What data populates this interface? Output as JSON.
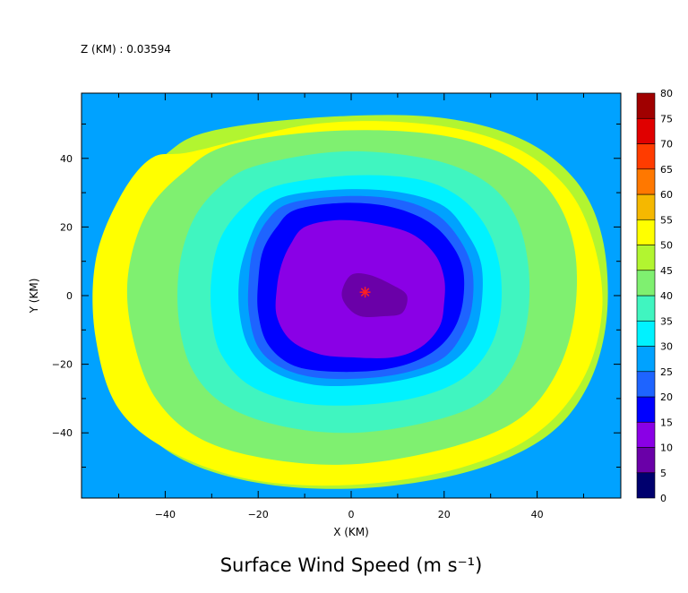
{
  "chart_data": {
    "type": "heatmap",
    "annotation": "Z (KM) : 0.03594",
    "title": "Surface Wind Speed (m s⁻¹)",
    "xlabel": "X (KM)",
    "ylabel": "Y (KM)",
    "xlim": [
      -58,
      58
    ],
    "ylim": [
      -59,
      59
    ],
    "x_ticks": [
      -40,
      -20,
      0,
      20,
      40
    ],
    "y_ticks": [
      -40,
      -20,
      0,
      20,
      40
    ],
    "colorbar": {
      "levels": [
        0,
        5,
        10,
        15,
        20,
        25,
        30,
        35,
        40,
        45,
        50,
        55,
        60,
        65,
        70,
        75,
        80
      ],
      "colors": [
        "#00006e",
        "#6a00a8",
        "#8a00e6",
        "#0000ff",
        "#1e64ff",
        "#00a2ff",
        "#00f2ff",
        "#40f5c0",
        "#7ff070",
        "#b2f530",
        "#ffff00",
        "#f5b800",
        "#ff7800",
        "#ff3c00",
        "#e00000",
        "#a00000"
      ]
    },
    "storm_center": {
      "x": 3,
      "y": 1,
      "marker": "red-asterisk"
    },
    "contours": [
      {
        "level": 5,
        "points": [
          [
            0,
            6
          ],
          [
            4,
            6
          ],
          [
            9,
            3
          ],
          [
            12,
            0
          ],
          [
            11,
            -5
          ],
          [
            7,
            -6
          ],
          [
            2,
            -6
          ],
          [
            -1,
            -3
          ],
          [
            -2,
            1
          ]
        ]
      },
      {
        "level": 10,
        "points": [
          [
            -10,
            20
          ],
          [
            -3,
            22
          ],
          [
            5,
            21
          ],
          [
            13,
            18
          ],
          [
            18,
            12
          ],
          [
            20,
            5
          ],
          [
            20,
            -2
          ],
          [
            19,
            -9
          ],
          [
            15,
            -15
          ],
          [
            9,
            -18
          ],
          [
            0,
            -18
          ],
          [
            -7,
            -17
          ],
          [
            -13,
            -13
          ],
          [
            -16,
            -6
          ],
          [
            -16,
            2
          ],
          [
            -15,
            9
          ],
          [
            -13,
            15
          ]
        ]
      },
      {
        "level": 15,
        "points": [
          [
            -12,
            25
          ],
          [
            -2,
            27
          ],
          [
            8,
            26
          ],
          [
            16,
            22
          ],
          [
            21,
            16
          ],
          [
            24,
            8
          ],
          [
            24,
            -2
          ],
          [
            22,
            -10
          ],
          [
            18,
            -16
          ],
          [
            12,
            -20
          ],
          [
            4,
            -22
          ],
          [
            -6,
            -22
          ],
          [
            -13,
            -20
          ],
          [
            -18,
            -14
          ],
          [
            -20,
            -5
          ],
          [
            -20,
            4
          ],
          [
            -19,
            13
          ],
          [
            -16,
            20
          ]
        ]
      },
      {
        "level": 20,
        "points": [
          [
            -13,
            27
          ],
          [
            -1,
            29
          ],
          [
            10,
            28
          ],
          [
            18,
            24
          ],
          [
            23,
            17
          ],
          [
            26,
            8
          ],
          [
            26,
            -3
          ],
          [
            24,
            -11
          ],
          [
            20,
            -18
          ],
          [
            13,
            -22
          ],
          [
            4,
            -24
          ],
          [
            -7,
            -24
          ],
          [
            -15,
            -21
          ],
          [
            -20,
            -15
          ],
          [
            -22,
            -5
          ],
          [
            -22,
            5
          ],
          [
            -21,
            14
          ],
          [
            -18,
            22
          ]
        ]
      },
      {
        "level": 25,
        "points": [
          [
            -14,
            29
          ],
          [
            -1,
            31
          ],
          [
            11,
            30
          ],
          [
            20,
            26
          ],
          [
            25,
            18
          ],
          [
            28,
            9
          ],
          [
            28,
            -3
          ],
          [
            26,
            -13
          ],
          [
            21,
            -20
          ],
          [
            13,
            -24
          ],
          [
            3,
            -26
          ],
          [
            -8,
            -26
          ],
          [
            -17,
            -22
          ],
          [
            -22,
            -15
          ],
          [
            -24,
            -5
          ],
          [
            -24,
            6
          ],
          [
            -22,
            16
          ],
          [
            -19,
            24
          ]
        ]
      },
      {
        "level": 30,
        "points": [
          [
            -16,
            32
          ],
          [
            0,
            35
          ],
          [
            14,
            34
          ],
          [
            23,
            29
          ],
          [
            29,
            20
          ],
          [
            32,
            8
          ],
          [
            32,
            -6
          ],
          [
            29,
            -17
          ],
          [
            23,
            -25
          ],
          [
            13,
            -30
          ],
          [
            0,
            -32
          ],
          [
            -12,
            -31
          ],
          [
            -22,
            -26
          ],
          [
            -28,
            -17
          ],
          [
            -30,
            -6
          ],
          [
            -30,
            6
          ],
          [
            -28,
            17
          ],
          [
            -23,
            26
          ]
        ]
      },
      {
        "level": 35,
        "points": [
          [
            -20,
            38
          ],
          [
            -2,
            42
          ],
          [
            16,
            40
          ],
          [
            28,
            34
          ],
          [
            35,
            24
          ],
          [
            38,
            10
          ],
          [
            38,
            -6
          ],
          [
            35,
            -20
          ],
          [
            28,
            -31
          ],
          [
            16,
            -37
          ],
          [
            0,
            -40
          ],
          [
            -15,
            -38
          ],
          [
            -27,
            -32
          ],
          [
            -34,
            -22
          ],
          [
            -37,
            -8
          ],
          [
            -37,
            8
          ],
          [
            -34,
            22
          ],
          [
            -28,
            32
          ]
        ]
      },
      {
        "level": 40,
        "points": [
          [
            -26,
            44
          ],
          [
            -4,
            48
          ],
          [
            18,
            47
          ],
          [
            33,
            41
          ],
          [
            43,
            30
          ],
          [
            48,
            14
          ],
          [
            48,
            -6
          ],
          [
            44,
            -23
          ],
          [
            36,
            -36
          ],
          [
            22,
            -44
          ],
          [
            2,
            -49
          ],
          [
            -16,
            -48
          ],
          [
            -32,
            -42
          ],
          [
            -42,
            -30
          ],
          [
            -47,
            -12
          ],
          [
            -48,
            6
          ],
          [
            -44,
            24
          ],
          [
            -36,
            36
          ]
        ]
      },
      {
        "level": 45,
        "points": [
          [
            -30,
            48
          ],
          [
            -6,
            52
          ],
          [
            18,
            52
          ],
          [
            36,
            46
          ],
          [
            48,
            34
          ],
          [
            54,
            17
          ],
          [
            55,
            -6
          ],
          [
            51,
            -26
          ],
          [
            42,
            -41
          ],
          [
            26,
            -51
          ],
          [
            4,
            -56
          ],
          [
            -18,
            -55
          ],
          [
            -36,
            -48
          ],
          [
            -47,
            -35
          ],
          [
            -52,
            -15
          ],
          [
            -53,
            6
          ],
          [
            -49,
            27
          ],
          [
            -40,
            41
          ]
        ]
      },
      {
        "level": 50,
        "points": [
          [
            -34,
            42
          ],
          [
            -8,
            50
          ],
          [
            16,
            50
          ],
          [
            34,
            44
          ],
          [
            46,
            32
          ],
          [
            52,
            16
          ],
          [
            54,
            -4
          ],
          [
            50,
            -24
          ],
          [
            40,
            -40
          ],
          [
            24,
            -50
          ],
          [
            2,
            -55
          ],
          [
            -20,
            -54
          ],
          [
            -38,
            -46
          ],
          [
            -50,
            -33
          ],
          [
            -55,
            -12
          ],
          [
            -55,
            10
          ],
          [
            -50,
            28
          ],
          [
            -43,
            40
          ]
        ]
      }
    ]
  }
}
